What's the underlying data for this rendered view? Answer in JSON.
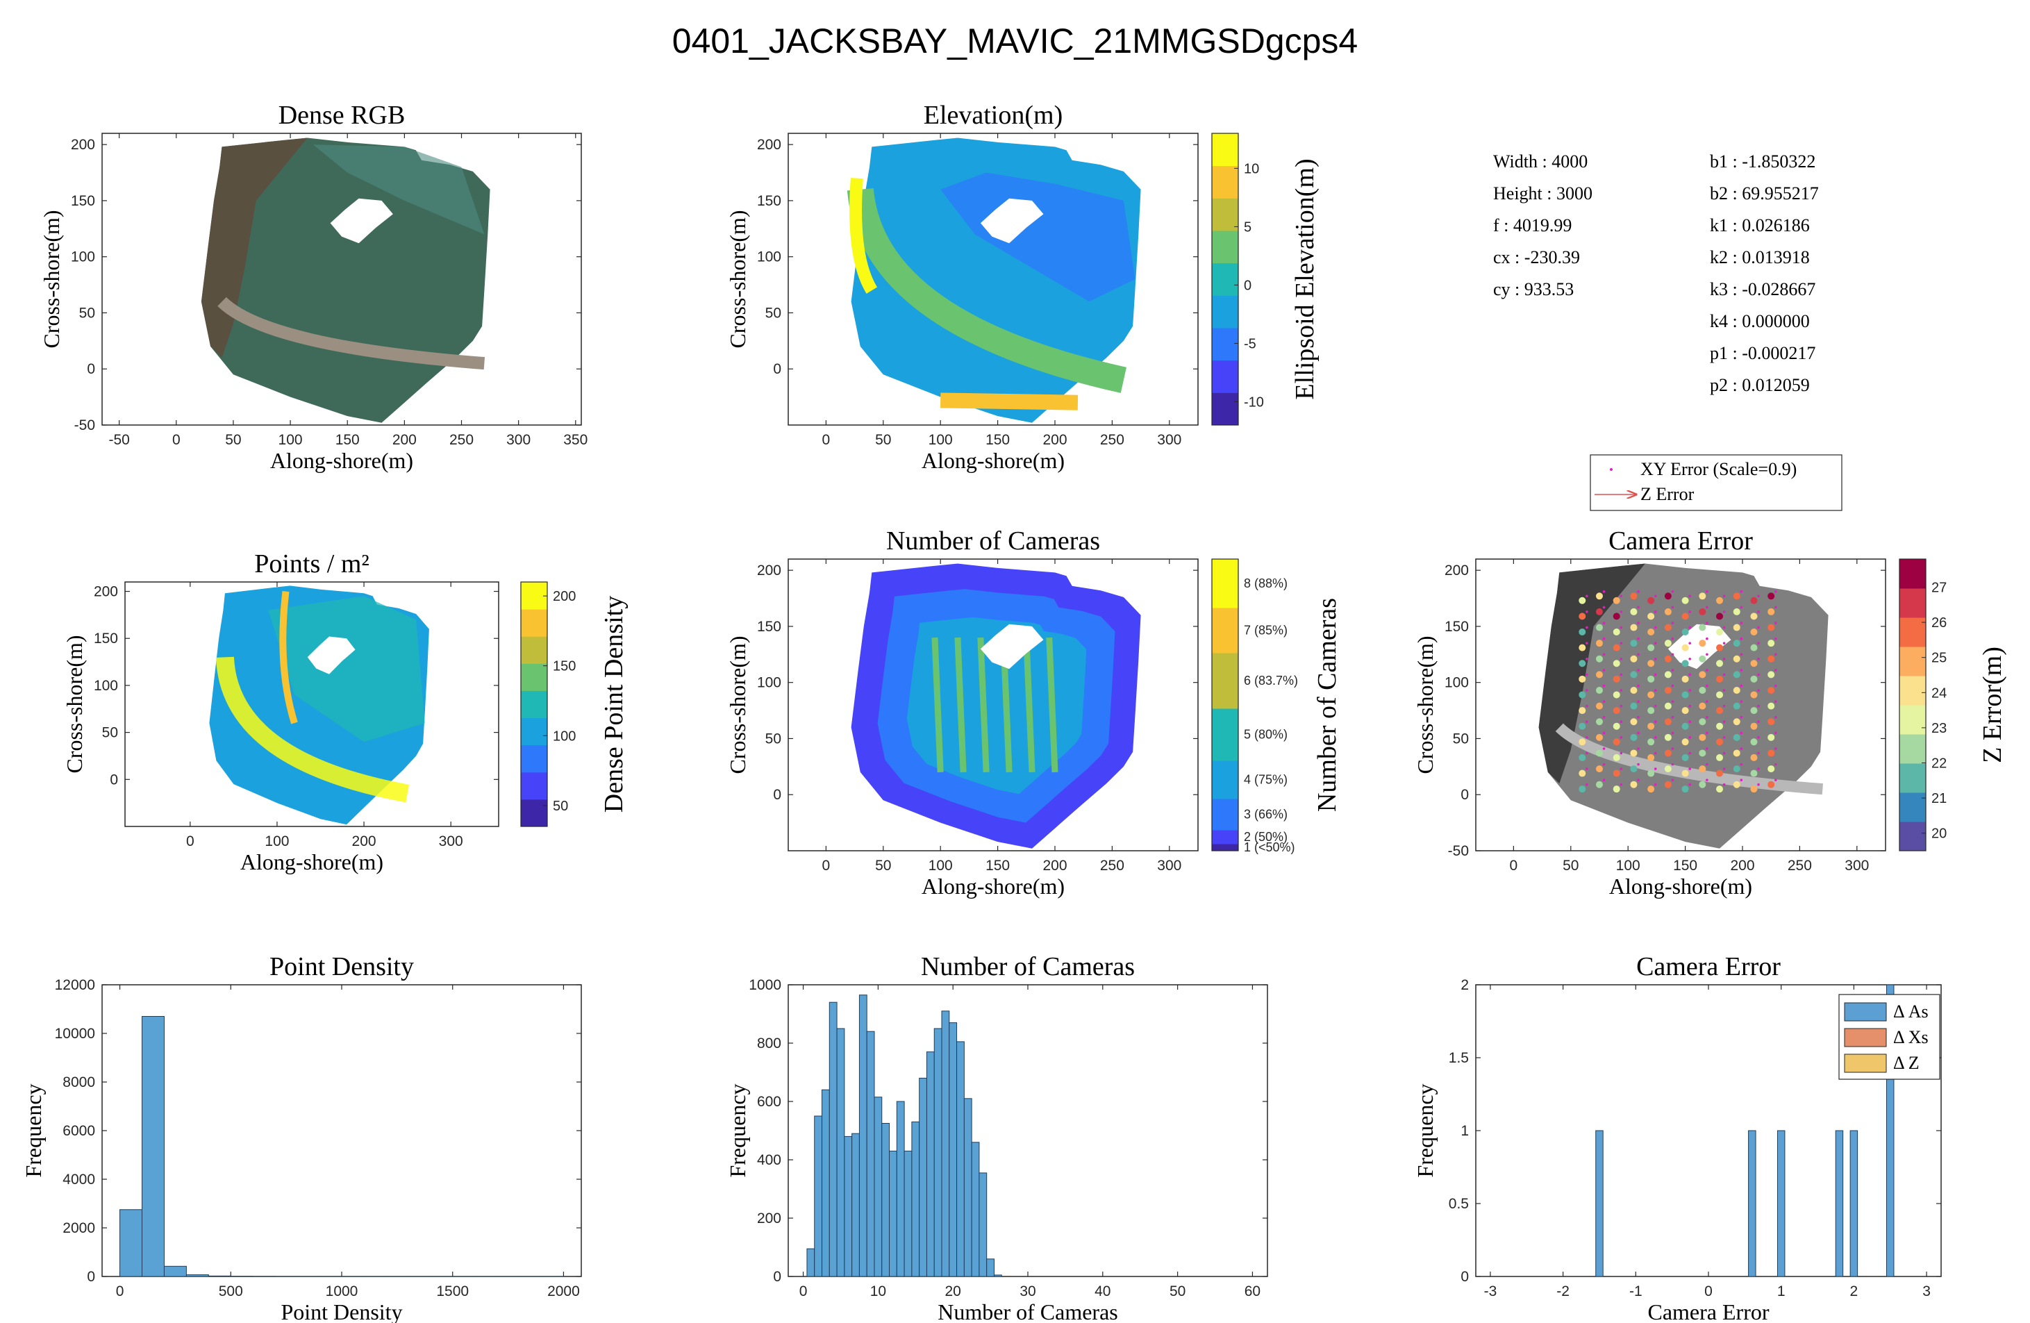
{
  "figure": {
    "title": "0401_JACKSBAY_MAVIC_21MMGSDgcps4"
  },
  "colors": {
    "parula": [
      "#3e26a8",
      "#4743f8",
      "#2d78fb",
      "#1ba2de",
      "#1fb8b4",
      "#6ac36f",
      "#c0bd3a",
      "#f9c230",
      "#f9fb15"
    ],
    "hist_fill": "#5aa2d4",
    "hist_edge": "#1f3c5a",
    "err_as": "#5b9fd3",
    "err_xs": "#e6906b",
    "err_z": "#f0c66a",
    "xy_marker": "#e020c0",
    "z_arrow": "#e05050",
    "spectral": [
      "#5a4ea4",
      "#3486bc",
      "#5cb7a8",
      "#a6d9a2",
      "#e5f4a0",
      "#fbe08d",
      "#fcad60",
      "#f46c43",
      "#d5384b",
      "#9e0142"
    ]
  },
  "camera_params": {
    "left": [
      {
        "label": "Width",
        "value": "4000"
      },
      {
        "label": "Height",
        "value": "3000"
      },
      {
        "label": "f",
        "value": "4019.99"
      },
      {
        "label": "cx",
        "value": "-230.39"
      },
      {
        "label": "cy",
        "value": "933.53"
      }
    ],
    "right": [
      {
        "label": "b1",
        "value": "-1.850322"
      },
      {
        "label": "b2",
        "value": "69.955217"
      },
      {
        "label": "k1",
        "value": "0.026186"
      },
      {
        "label": "k2",
        "value": "0.013918"
      },
      {
        "label": "k3",
        "value": "-0.028667"
      },
      {
        "label": "k4",
        "value": "0.000000"
      },
      {
        "label": "p1",
        "value": "-0.000217"
      },
      {
        "label": "p2",
        "value": "0.012059"
      }
    ]
  },
  "chart_data": [
    {
      "type": "heatmap",
      "id": "dense_rgb",
      "title": "Dense RGB",
      "xlabel": "Along-shore(m)",
      "ylabel": "Cross-shore(m)",
      "xlim": [
        -65,
        355
      ],
      "ylim": [
        -50,
        210
      ],
      "xticks": [
        -50,
        0,
        50,
        100,
        150,
        200,
        250,
        300,
        350
      ],
      "yticks": [
        -50,
        0,
        50,
        100,
        150,
        200
      ]
    },
    {
      "type": "heatmap",
      "id": "elevation",
      "title": "Elevation(m)",
      "xlabel": "Along-shore(m)",
      "ylabel": "Cross-shore(m)",
      "xlim": [
        -33,
        325
      ],
      "ylim": [
        -50,
        210
      ],
      "xticks": [
        0,
        50,
        100,
        150,
        200,
        250,
        300
      ],
      "yticks": [
        0,
        50,
        100,
        150,
        200
      ],
      "colorbar": {
        "label": "Ellipsoid Elevation(m)",
        "range": [
          -12,
          13
        ],
        "ticks": [
          10,
          5,
          0,
          -5,
          -10
        ]
      }
    },
    {
      "type": "heatmap",
      "id": "points_per_m2",
      "title": "Points / m²",
      "xlabel": "Along-shore(m)",
      "ylabel": "Cross-shore(m)",
      "xlim": [
        -75,
        355
      ],
      "ylim": [
        -50,
        210
      ],
      "xticks": [
        0,
        100,
        200,
        300
      ],
      "yticks": [
        0,
        50,
        100,
        150,
        200
      ],
      "colorbar": {
        "label": "Dense Point Density",
        "range": [
          35,
          210
        ],
        "ticks": [
          200,
          150,
          100,
          50
        ]
      }
    },
    {
      "type": "heatmap",
      "id": "num_cameras_map",
      "title": "Number of Cameras",
      "xlabel": "Along-shore(m)",
      "ylabel": "Cross-shore(m)",
      "xlim": [
        -33,
        325
      ],
      "ylim": [
        -50,
        210
      ],
      "xticks": [
        0,
        50,
        100,
        150,
        200,
        250,
        300
      ],
      "yticks": [
        0,
        50,
        100,
        150,
        200
      ],
      "colorbar": {
        "label": "Number of Cameras",
        "ticks": [
          "8 (88%)",
          "7 (85%)",
          "6 (83.7%)",
          "5 (80%)",
          "4 (75%)",
          "3 (66%)",
          "2 (50%)",
          "1 (<50%)"
        ]
      }
    },
    {
      "type": "scatter",
      "id": "camera_error_map",
      "title": "Camera Error",
      "xlabel": "Along-shore(m)",
      "ylabel": "Cross-shore(m)",
      "xlim": [
        -33,
        325
      ],
      "ylim": [
        -50,
        210
      ],
      "xticks": [
        0,
        50,
        100,
        150,
        200,
        250,
        300
      ],
      "yticks": [
        -50,
        0,
        50,
        100,
        150,
        200
      ],
      "legend": {
        "position": "top",
        "entries": [
          "XY Error (Scale=0.9)",
          "Z Error"
        ]
      },
      "colorbar": {
        "label": "Z Error(m)",
        "range": [
          19.5,
          27.8
        ],
        "ticks": [
          27,
          26,
          25,
          24,
          23,
          22,
          21,
          20
        ]
      }
    },
    {
      "type": "bar",
      "id": "point_density_hist",
      "title": "Point Density",
      "xlabel": "Point Density",
      "ylabel": "Frequency",
      "xlim": [
        -80,
        2080
      ],
      "ylim": [
        0,
        12000
      ],
      "xticks": [
        0,
        500,
        1000,
        1500,
        2000
      ],
      "yticks": [
        0,
        2000,
        4000,
        6000,
        8000,
        10000,
        12000
      ],
      "bin_width": 100,
      "bin_edges_start": 0,
      "values": [
        2750,
        10700,
        420,
        70,
        20,
        10,
        5,
        3,
        2,
        2,
        1,
        1,
        1,
        1,
        1,
        1,
        1,
        1,
        1,
        1
      ]
    },
    {
      "type": "bar",
      "id": "num_cameras_hist",
      "title": "Number of Cameras",
      "xlabel": "Number of Cameras",
      "ylabel": "Frequency",
      "xlim": [
        -2,
        62
      ],
      "ylim": [
        0,
        1000
      ],
      "xticks": [
        0,
        10,
        20,
        30,
        40,
        50,
        60
      ],
      "yticks": [
        0,
        200,
        400,
        600,
        800,
        1000
      ],
      "bin_width": 1,
      "bin_edges_start": 1,
      "values": [
        95,
        550,
        640,
        940,
        850,
        480,
        490,
        965,
        840,
        615,
        525,
        430,
        600,
        430,
        530,
        680,
        770,
        850,
        910,
        870,
        805,
        610,
        460,
        355,
        60,
        5
      ]
    },
    {
      "type": "bar",
      "id": "camera_error_hist",
      "title": "Camera Error",
      "xlabel": "Camera Error",
      "ylabel": "Frequency",
      "xlim": [
        -3.2,
        3.2
      ],
      "ylim": [
        0,
        2
      ],
      "xticks": [
        -3,
        -2,
        -1,
        0,
        1,
        2,
        3
      ],
      "yticks": [
        0,
        0.5,
        1,
        1.5,
        2
      ],
      "bin_width": 0.1,
      "legend": {
        "position": "top-right",
        "entries": [
          "Δ As",
          "Δ Xs",
          "Δ Z"
        ]
      },
      "bars": [
        {
          "x": -1.5,
          "value": 1
        },
        {
          "x": 0.6,
          "value": 1
        },
        {
          "x": 1.0,
          "value": 1
        },
        {
          "x": 1.8,
          "value": 1
        },
        {
          "x": 2.0,
          "value": 1
        },
        {
          "x": 2.5,
          "value": 2
        }
      ]
    }
  ]
}
